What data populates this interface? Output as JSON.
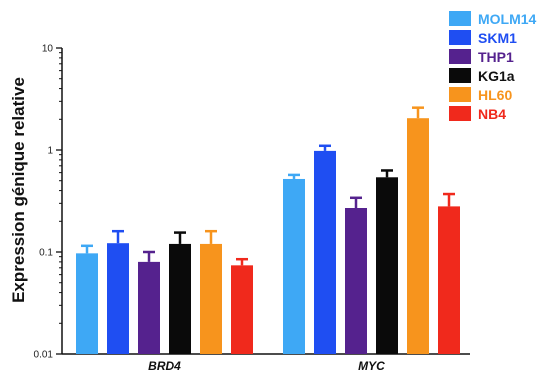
{
  "chart_data": {
    "type": "bar",
    "ylabel": "Expression génique relative",
    "yscale": "log",
    "ylim": [
      0.01,
      10
    ],
    "yticks": [
      "0.01",
      "0.1",
      "1",
      "10"
    ],
    "categories": [
      "BRD4",
      "MYC"
    ],
    "legend_position": "top-right",
    "series": [
      {
        "name": "MOLM14",
        "color": "#3ea8f5",
        "values": [
          0.097,
          0.52
        ],
        "errors": [
          0.115,
          0.57
        ]
      },
      {
        "name": "SKM1",
        "color": "#1f4ef2",
        "values": [
          0.122,
          0.98
        ],
        "errors": [
          0.16,
          1.1
        ]
      },
      {
        "name": "THP1",
        "color": "#55228e",
        "values": [
          0.08,
          0.27
        ],
        "errors": [
          0.1,
          0.34
        ]
      },
      {
        "name": "KG1a",
        "color": "#0a0a0a",
        "values": [
          0.12,
          0.54
        ],
        "errors": [
          0.155,
          0.63
        ]
      },
      {
        "name": "HL60",
        "color": "#f7941d",
        "values": [
          0.12,
          2.05
        ],
        "errors": [
          0.16,
          2.6
        ]
      },
      {
        "name": "NB4",
        "color": "#f0291c",
        "values": [
          0.074,
          0.28
        ],
        "errors": [
          0.085,
          0.37
        ]
      }
    ]
  }
}
